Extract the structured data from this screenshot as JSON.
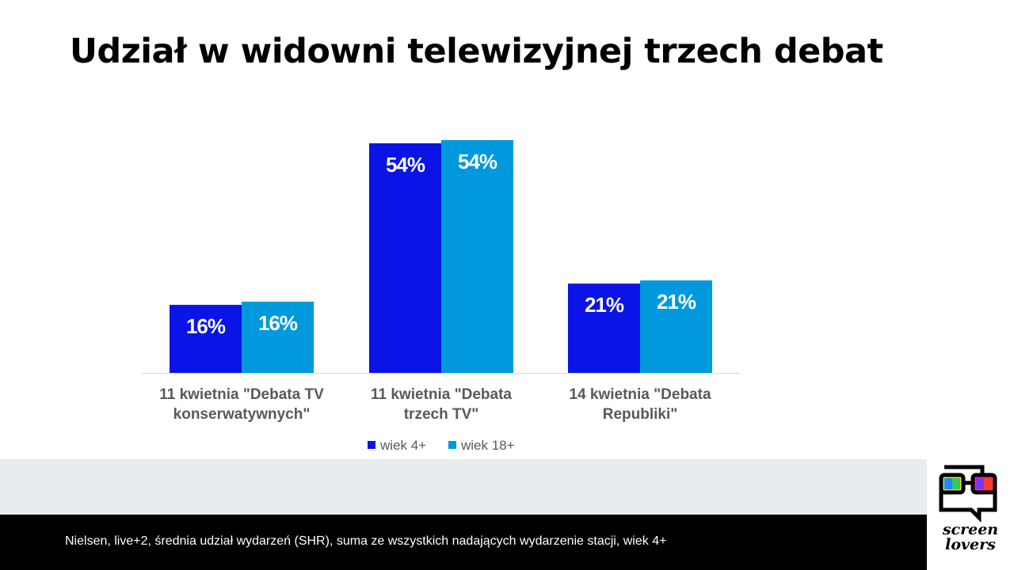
{
  "title": "Udział w widowni telewizyjnej trzech debat",
  "chart_data": {
    "type": "bar",
    "categories": [
      [
        "11 kwietnia \"Debata TV",
        "konserwatywnych\""
      ],
      [
        "11 kwietnia \"Debata",
        "trzech TV\""
      ],
      [
        "14 kwietnia \"Debata",
        "Republiki\""
      ]
    ],
    "series": [
      {
        "name": "wiek 4+",
        "color": "#0a14e6",
        "values": [
          16,
          54,
          21
        ],
        "labels": [
          "16%",
          "54%",
          "21%"
        ]
      },
      {
        "name": "wiek 18+",
        "color": "#0099dd",
        "values": [
          16,
          54,
          21
        ],
        "labels": [
          "16%",
          "54%",
          "21%"
        ]
      }
    ],
    "legend_position": "bottom",
    "grid": false
  },
  "footer": {
    "note": "Nielsen, live+2, średnia udział wydarzeń (SHR), suma ze wszystkich nadających wydarzenie stacji, wiek 4+"
  },
  "logo": {
    "line1": "screen",
    "line2": "lovers",
    "icon": "glasses-speech-bubble-icon"
  }
}
